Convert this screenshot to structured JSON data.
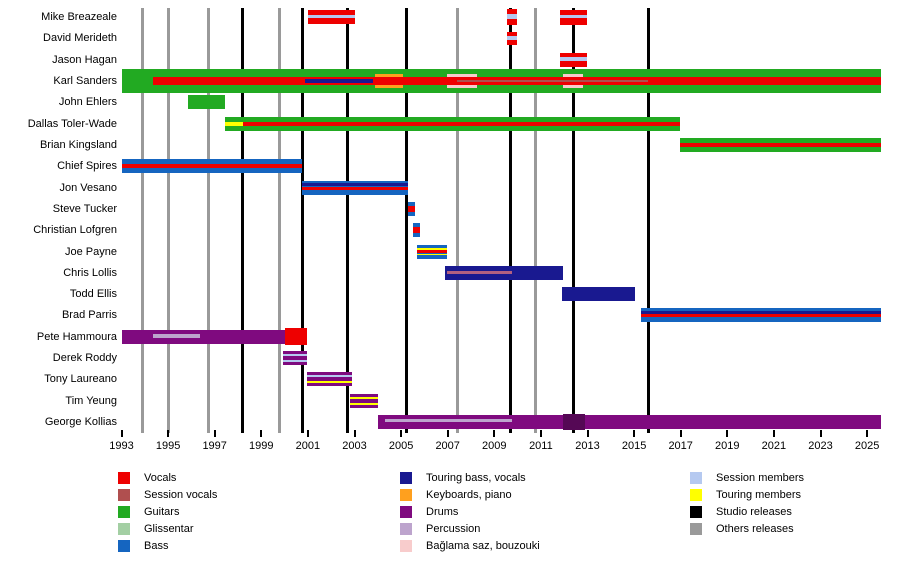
{
  "colors": {
    "vocals": "#ee0000",
    "session_vocals": "#b04f4f",
    "guitars": "#22aa22",
    "glissentar": "#a3cfa3",
    "bass": "#1565c0",
    "touring_bass": "#191990",
    "keyboards": "#ffa01e",
    "drums": "#7f0a7f",
    "percussion": "#bda4cd",
    "baglama": "#f8cccc",
    "session_members": "#b5c9f0",
    "touring_members": "#ffff00",
    "studio": "#000000",
    "others": "#9a9a9a",
    "rose": "#b26080",
    "dark_purple": "#550855"
  },
  "chart_data": {
    "type": "timeline",
    "title": "",
    "axis": {
      "start_year": 1993,
      "end_year": 2025.7,
      "tick_years": [
        1993,
        1995,
        1997,
        1999,
        2001,
        2003,
        2005,
        2007,
        2009,
        2011,
        2013,
        2015,
        2017,
        2019,
        2021,
        2023,
        2025
      ]
    },
    "releases": [
      {
        "year": 1993.9,
        "type": "others"
      },
      {
        "year": 1995.0,
        "type": "others"
      },
      {
        "year": 1996.75,
        "type": "others"
      },
      {
        "year": 1998.2,
        "type": "studio"
      },
      {
        "year": 1999.8,
        "type": "others"
      },
      {
        "year": 2000.75,
        "type": "studio"
      },
      {
        "year": 2002.7,
        "type": "studio"
      },
      {
        "year": 2005.25,
        "type": "studio"
      },
      {
        "year": 2007.4,
        "type": "others"
      },
      {
        "year": 2009.7,
        "type": "studio"
      },
      {
        "year": 2010.75,
        "type": "others"
      },
      {
        "year": 2012.4,
        "type": "studio"
      },
      {
        "year": 2015.6,
        "type": "studio"
      }
    ],
    "members": [
      {
        "name": "Mike Breazeale",
        "bars": [
          {
            "start": 2001.0,
            "end": 2003.02,
            "h": 14,
            "stripes": [
              {
                "c": "vocals",
                "y0": 0,
                "y1": 1
              },
              {
                "c": "session_members",
                "y0": 0.34,
                "y1": 0.6
              }
            ]
          },
          {
            "start": 2009.54,
            "end": 2009.97,
            "h": 16,
            "stripes": [
              {
                "c": "vocals",
                "y0": 0,
                "y1": 1
              },
              {
                "c": "session_members",
                "y0": 0.34,
                "y1": 0.6
              }
            ]
          },
          {
            "start": 2011.82,
            "end": 2012.98,
            "h": 15,
            "stripes": [
              {
                "c": "vocals",
                "y0": 0,
                "y1": 1
              },
              {
                "c": "session_members",
                "y0": 0.34,
                "y1": 0.6
              }
            ]
          }
        ]
      },
      {
        "name": "David Merideth",
        "bars": [
          {
            "start": 2009.54,
            "end": 2009.97,
            "h": 13,
            "stripes": [
              {
                "c": "vocals",
                "y0": 0,
                "y1": 1
              },
              {
                "c": "session_members",
                "y0": 0.34,
                "y1": 0.6
              }
            ]
          }
        ]
      },
      {
        "name": "Jason Hagan",
        "bars": [
          {
            "start": 2011.82,
            "end": 2012.98,
            "h": 14,
            "stripes": [
              {
                "c": "vocals",
                "y0": 0,
                "y1": 1
              },
              {
                "c": "session_members",
                "y0": 0.34,
                "y1": 0.6
              }
            ]
          }
        ]
      },
      {
        "name": "Karl Sanders",
        "bars": [
          {
            "start": 1993.0,
            "end": 2025.6,
            "h": 24,
            "stripes": [
              {
                "c": "guitars",
                "y0": 0,
                "y1": 1
              },
              {
                "c": "keyboards",
                "y0": 0.21,
                "y1": 0.79,
                "s": 2003.88,
                "e": 2005.08
              },
              {
                "c": "baglama",
                "y0": 0.21,
                "y1": 0.79,
                "s": 2006.97,
                "e": 2008.26
              },
              {
                "c": "baglama",
                "y0": 0.21,
                "y1": 0.79,
                "s": 2011.95,
                "e": 2012.81
              },
              {
                "c": "vocals",
                "y0": 0.33,
                "y1": 0.67,
                "s": 1994.35
              },
              {
                "c": "touring_bass",
                "y0": 0.42,
                "y1": 0.58,
                "s": 2000.88,
                "e": 2003.8
              },
              {
                "c": "session_vocals",
                "y0": 0.44,
                "y1": 0.56,
                "s": 2007.4,
                "e": 2015.6
              }
            ]
          }
        ]
      },
      {
        "name": "John Ehlers",
        "bars": [
          {
            "start": 1995.85,
            "end": 1997.44,
            "h": 14,
            "stripes": [
              {
                "c": "guitars",
                "y0": 0,
                "y1": 1
              }
            ]
          }
        ]
      },
      {
        "name": "Dallas Toler-Wade",
        "bars": [
          {
            "start": 1997.44,
            "end": 2016.97,
            "h": 14,
            "stripes": [
              {
                "c": "guitars",
                "y0": 0,
                "y1": 1
              },
              {
                "c": "touring_members",
                "y0": 0.36,
                "y1": 0.64,
                "s": 1997.44,
                "e": 1998.21
              },
              {
                "c": "vocals",
                "y0": 0.36,
                "y1": 0.64,
                "s": 1998.21
              }
            ]
          }
        ]
      },
      {
        "name": "Brian Kingsland",
        "bars": [
          {
            "start": 2016.97,
            "end": 2025.6,
            "h": 14,
            "stripes": [
              {
                "c": "guitars",
                "y0": 0,
                "y1": 1
              },
              {
                "c": "vocals",
                "y0": 0.36,
                "y1": 0.64
              }
            ]
          }
        ]
      },
      {
        "name": "Chief Spires",
        "bars": [
          {
            "start": 1993.0,
            "end": 2000.75,
            "h": 14,
            "stripes": [
              {
                "c": "bass",
                "y0": 0,
                "y1": 1
              },
              {
                "c": "vocals",
                "y0": 0.36,
                "y1": 0.64
              }
            ]
          }
        ]
      },
      {
        "name": "Jon Vesano",
        "bars": [
          {
            "start": 2000.75,
            "end": 2005.3,
            "h": 14,
            "stripes": [
              {
                "c": "bass",
                "y0": 0,
                "y1": 1
              },
              {
                "c": "touring_bass",
                "y0": 0.15,
                "y1": 0.36
              },
              {
                "c": "vocals",
                "y0": 0.43,
                "y1": 0.64
              }
            ]
          }
        ]
      },
      {
        "name": "Steve Tucker",
        "bars": [
          {
            "start": 2005.3,
            "end": 2005.6,
            "h": 14,
            "stripes": [
              {
                "c": "bass",
                "y0": 0,
                "y1": 1
              },
              {
                "c": "vocals",
                "y0": 0.3,
                "y1": 0.7
              }
            ]
          }
        ]
      },
      {
        "name": "Christian Lofgren",
        "bars": [
          {
            "start": 2005.51,
            "end": 2005.81,
            "h": 14,
            "stripes": [
              {
                "c": "bass",
                "y0": 0,
                "y1": 1
              },
              {
                "c": "vocals",
                "y0": 0.3,
                "y1": 0.7
              }
            ]
          }
        ]
      },
      {
        "name": "Joe Payne",
        "bars": [
          {
            "start": 2005.68,
            "end": 2006.97,
            "h": 14,
            "stripes": [
              {
                "c": "bass",
                "y0": 0,
                "y1": 1
              },
              {
                "c": "touring_members",
                "y0": 0.24,
                "y1": 0.36
              },
              {
                "c": "vocals",
                "y0": 0.4,
                "y1": 0.62
              },
              {
                "c": "touring_members",
                "y0": 0.66,
                "y1": 0.78
              }
            ]
          }
        ]
      },
      {
        "name": "Chris Lollis",
        "bars": [
          {
            "start": 2006.88,
            "end": 2011.95,
            "h": 14,
            "stripes": [
              {
                "c": "touring_bass",
                "y0": 0,
                "y1": 1
              },
              {
                "c": "rose",
                "y0": 0.4,
                "y1": 0.6,
                "s": 2006.97,
                "e": 2009.76
              }
            ]
          }
        ]
      },
      {
        "name": "Todd Ellis",
        "bars": [
          {
            "start": 2011.91,
            "end": 2015.04,
            "h": 14,
            "stripes": [
              {
                "c": "touring_bass",
                "y0": 0,
                "y1": 1
              }
            ]
          }
        ]
      },
      {
        "name": "Brad Parris",
        "bars": [
          {
            "start": 2015.3,
            "end": 2025.6,
            "h": 14,
            "stripes": [
              {
                "c": "bass",
                "y0": 0,
                "y1": 1
              },
              {
                "c": "touring_bass",
                "y0": 0.18,
                "y1": 0.36
              },
              {
                "c": "vocals",
                "y0": 0.43,
                "y1": 0.62
              }
            ]
          }
        ]
      },
      {
        "name": "Pete Hammoura",
        "bars": [
          {
            "start": 1993.0,
            "end": 2000.02,
            "h": 14,
            "stripes": [
              {
                "c": "drums",
                "y0": 0,
                "y1": 1
              },
              {
                "c": "percussion",
                "y0": 0.3,
                "y1": 0.57,
                "s": 1994.35,
                "e": 1996.37
              }
            ]
          },
          {
            "start": 2000.02,
            "end": 2000.96,
            "h": 14,
            "stripes": [
              {
                "c": "vocals",
                "y0": -0.12,
                "y1": 1.12
              }
            ]
          }
        ]
      },
      {
        "name": "Derek Roddy",
        "bars": [
          {
            "start": 1999.93,
            "end": 2000.96,
            "h": 14,
            "stripes": [
              {
                "c": "drums",
                "y0": 0,
                "y1": 1
              },
              {
                "c": "session_members",
                "y0": 0.21,
                "y1": 0.36
              },
              {
                "c": "session_members",
                "y0": 0.64,
                "y1": 0.79
              }
            ]
          }
        ]
      },
      {
        "name": "Tony Laureano",
        "bars": [
          {
            "start": 2000.96,
            "end": 2002.89,
            "h": 14,
            "stripes": [
              {
                "c": "drums",
                "y0": 0,
                "y1": 1
              },
              {
                "c": "session_members",
                "y0": 0.21,
                "y1": 0.36
              },
              {
                "c": "touring_members",
                "y0": 0.64,
                "y1": 0.79
              }
            ]
          }
        ]
      },
      {
        "name": "Tim Yeung",
        "bars": [
          {
            "start": 2002.81,
            "end": 2004.01,
            "h": 14,
            "stripes": [
              {
                "c": "drums",
                "y0": 0,
                "y1": 1
              },
              {
                "c": "touring_members",
                "y0": 0.21,
                "y1": 0.36
              },
              {
                "c": "touring_members",
                "y0": 0.64,
                "y1": 0.79
              }
            ]
          }
        ]
      },
      {
        "name": "George Kollias",
        "bars": [
          {
            "start": 2004.01,
            "end": 2025.6,
            "h": 14,
            "stripes": [
              {
                "c": "drums",
                "y0": 0,
                "y1": 1
              },
              {
                "c": "percussion",
                "y0": 0.25,
                "y1": 0.5,
                "s": 2004.31,
                "e": 2009.76
              },
              {
                "c": "dark_purple",
                "y0": -0.07,
                "y1": 1.07,
                "s": 2011.95,
                "e": 2012.89
              }
            ]
          }
        ]
      }
    ],
    "legend_columns": [
      [
        {
          "label": "Vocals",
          "c": "vocals"
        },
        {
          "label": "Session vocals",
          "c": "session_vocals"
        },
        {
          "label": "Guitars",
          "c": "guitars"
        },
        {
          "label": "Glissentar",
          "c": "glissentar"
        },
        {
          "label": "Bass",
          "c": "bass"
        }
      ],
      [
        {
          "label": "Touring bass, vocals",
          "c": "touring_bass"
        },
        {
          "label": "Keyboards, piano",
          "c": "keyboards"
        },
        {
          "label": "Drums",
          "c": "drums"
        },
        {
          "label": "Percussion",
          "c": "percussion"
        },
        {
          "label": "Bağlama saz, bouzouki",
          "c": "baglama"
        }
      ],
      [
        {
          "label": "Session members",
          "c": "session_members"
        },
        {
          "label": "Touring members",
          "c": "touring_members"
        },
        {
          "label": "Studio releases",
          "c": "studio"
        },
        {
          "label": "Others releases",
          "c": "others"
        }
      ]
    ]
  }
}
